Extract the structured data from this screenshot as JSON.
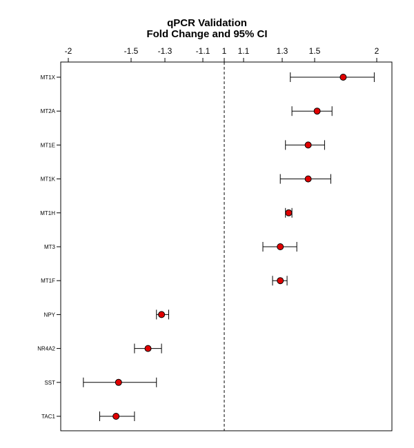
{
  "chart_data": {
    "type": "forest",
    "title": "qPCR Validation",
    "subtitle": "Fold Change and 95% CI",
    "x_tick_labels": [
      "-2",
      "-1.5",
      "-1.3",
      "-1.1",
      "1",
      "1.1",
      "1.3",
      "1.5",
      "2"
    ],
    "x_tick_values": [
      -2,
      -1.5,
      -1.3,
      -1.1,
      1,
      1.1,
      1.3,
      1.5,
      2
    ],
    "reference_line": 1,
    "point_color": "#e00000",
    "genes": [
      {
        "label": "MT1X",
        "fold_change": 1.73,
        "ci_low": 1.35,
        "ci_high": 1.98
      },
      {
        "label": "MT2A",
        "fold_change": 1.52,
        "ci_low": 1.36,
        "ci_high": 1.64
      },
      {
        "label": "MT1E",
        "fold_change": 1.46,
        "ci_low": 1.32,
        "ci_high": 1.58
      },
      {
        "label": "MT1K",
        "fold_change": 1.46,
        "ci_low": 1.29,
        "ci_high": 1.63
      },
      {
        "label": "MT1H",
        "fold_change": 1.34,
        "ci_low": 1.32,
        "ci_high": 1.36
      },
      {
        "label": "MT3",
        "fold_change": 1.29,
        "ci_low": 1.2,
        "ci_high": 1.39
      },
      {
        "label": "MT1F",
        "fold_change": 1.29,
        "ci_low": 1.25,
        "ci_high": 1.33
      },
      {
        "label": "NPY",
        "fold_change": -1.32,
        "ci_low": -1.35,
        "ci_high": -1.28
      },
      {
        "label": "NR4A2",
        "fold_change": -1.4,
        "ci_low": -1.48,
        "ci_high": -1.32
      },
      {
        "label": "SST",
        "fold_change": -1.6,
        "ci_low": -1.88,
        "ci_high": -1.35
      },
      {
        "label": "TAC1",
        "fold_change": -1.62,
        "ci_low": -1.75,
        "ci_high": -1.48
      }
    ]
  }
}
